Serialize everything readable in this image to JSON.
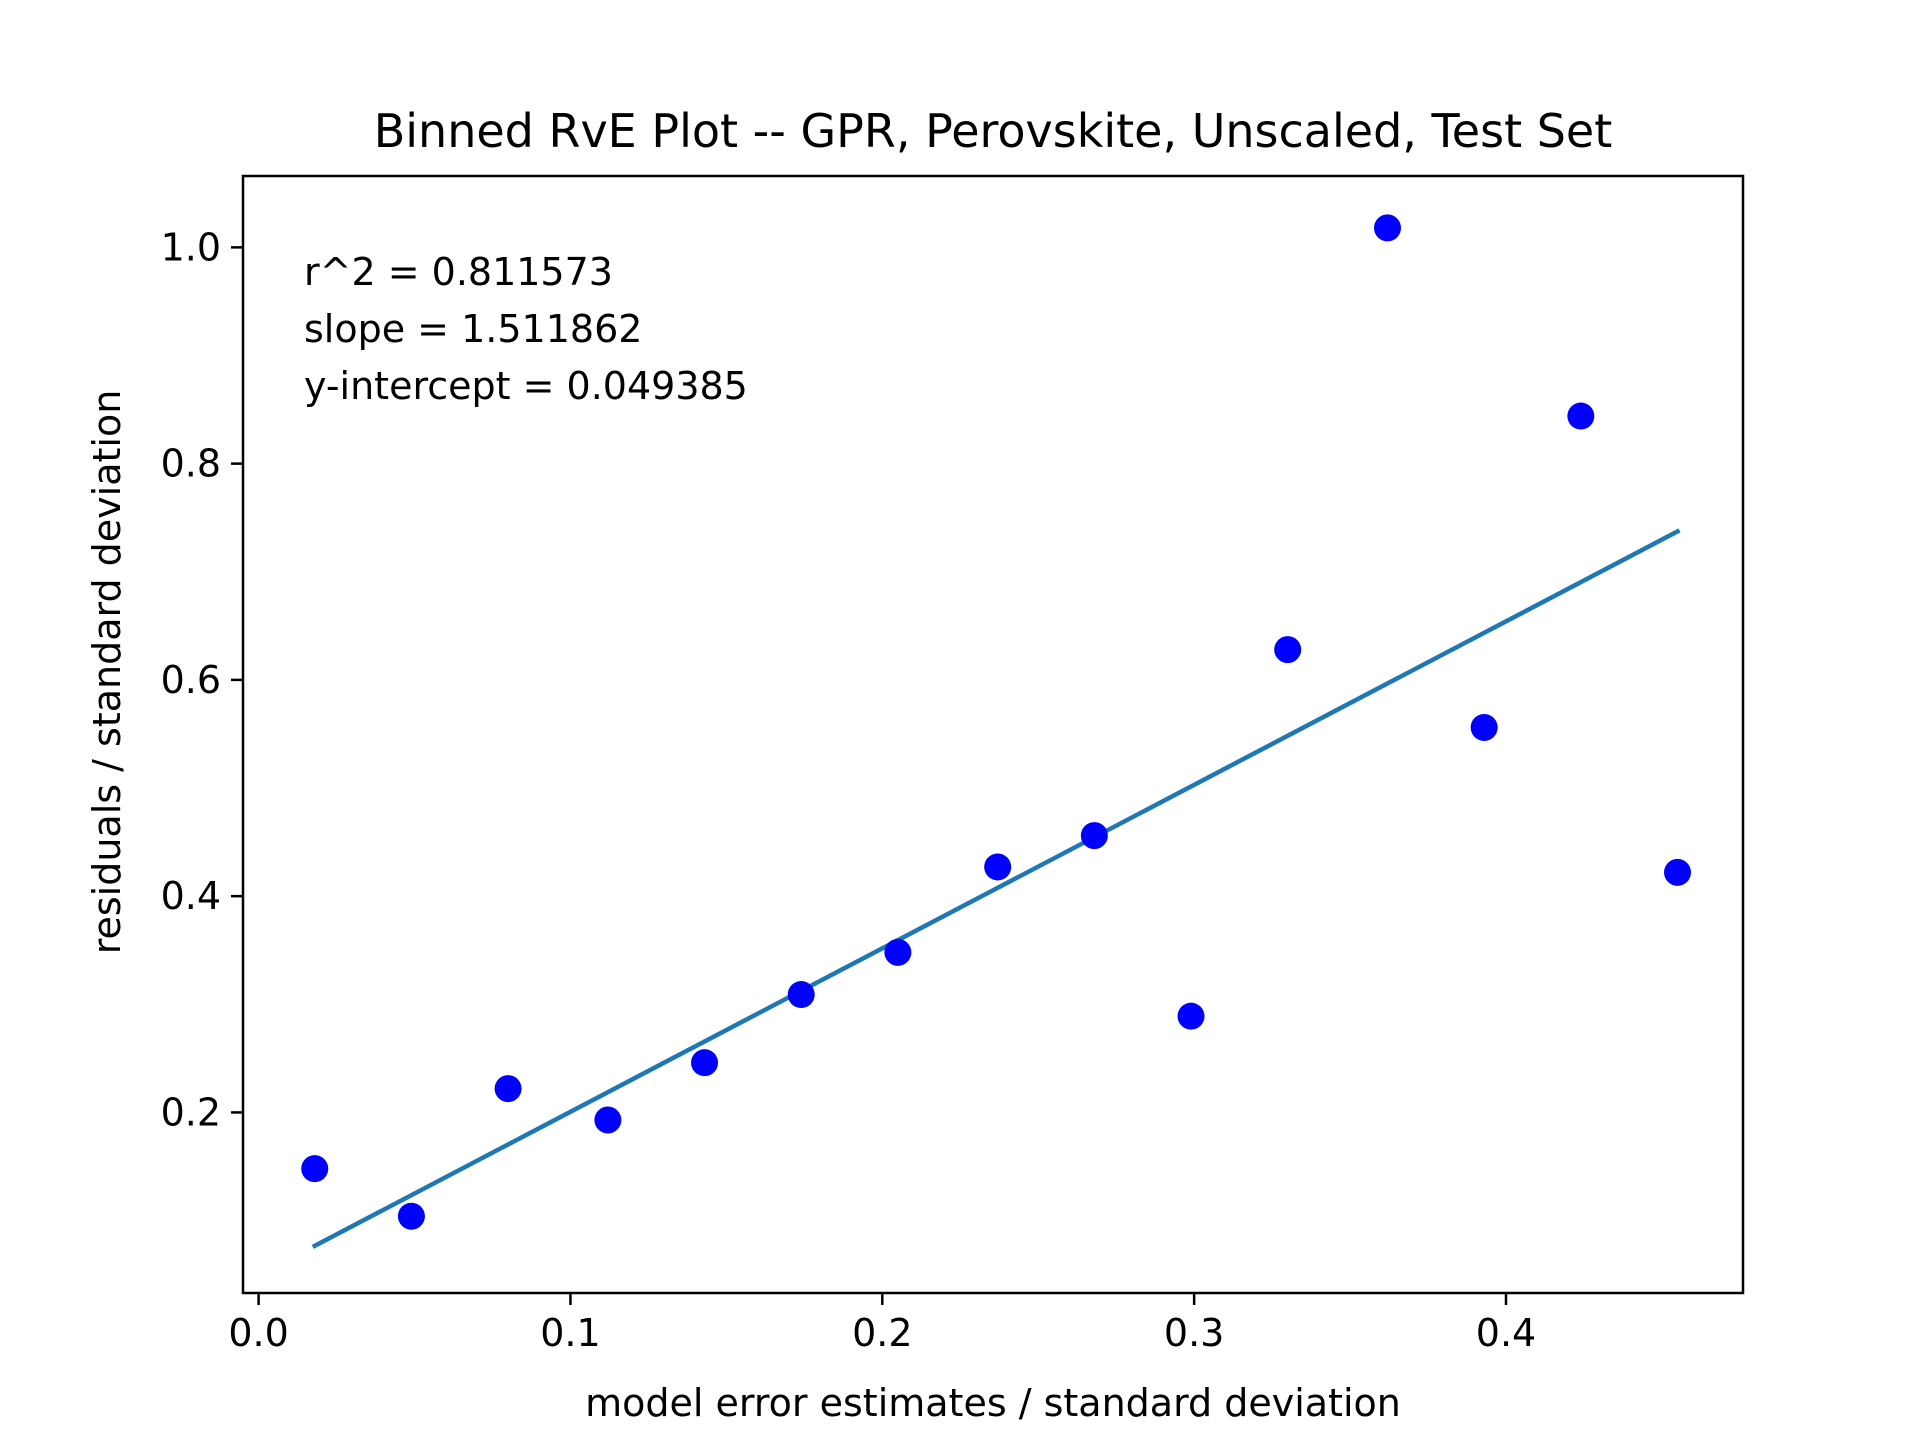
{
  "chart_data": {
    "type": "scatter",
    "title": "Binned RvE Plot -- GPR, Perovskite, Unscaled, Test Set",
    "xlabel": "model error estimates / standard deviation",
    "ylabel": "residuals / standard deviation",
    "xlim": [
      -0.005,
      0.476
    ],
    "ylim": [
      0.033,
      1.066
    ],
    "x_ticks": [
      0.0,
      0.1,
      0.2,
      0.3,
      0.4
    ],
    "x_tick_labels": [
      "0.0",
      "0.1",
      "0.2",
      "0.3",
      "0.4"
    ],
    "y_ticks": [
      0.2,
      0.4,
      0.6,
      0.8,
      1.0
    ],
    "y_tick_labels": [
      "0.2",
      "0.4",
      "0.6",
      "0.8",
      "1.0"
    ],
    "grid": false,
    "series": [
      {
        "x": [
          0.018,
          0.049,
          0.08,
          0.112,
          0.143,
          0.174,
          0.205,
          0.237,
          0.268,
          0.299,
          0.33,
          0.362,
          0.393,
          0.424,
          0.455
        ],
        "y": [
          0.148,
          0.104,
          0.222,
          0.193,
          0.246,
          0.309,
          0.348,
          0.427,
          0.456,
          0.289,
          0.628,
          1.018,
          0.556,
          0.844,
          0.422
        ],
        "color": "#0000ff"
      }
    ],
    "fit_line": {
      "x": [
        0.018,
        0.455
      ],
      "slope": 1.511862,
      "intercept": 0.049385,
      "color": "#1f77b4"
    },
    "annotations": [
      "r^2 = 0.811573",
      "slope = 1.511862",
      "y-intercept = 0.049385"
    ]
  }
}
